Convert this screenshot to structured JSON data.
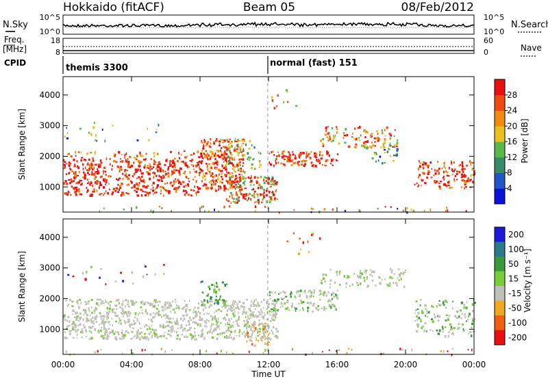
{
  "header": {
    "station": "Hokkaido (fitACF)",
    "beam": "Beam 05",
    "date": "08/Feb/2012"
  },
  "sky_panel": {
    "left_label": "N.Sky",
    "left_ticks": [
      "10^5",
      "10^0"
    ],
    "right_ticks": [
      "10^5",
      "10^0"
    ],
    "right_label": "N.Search",
    "series": [
      {
        "name": "N.Sky",
        "style": "solid",
        "level": 0.45
      },
      {
        "name": "N.Search",
        "style": "dotted",
        "level": 0.35
      }
    ]
  },
  "freq_panel": {
    "left_label_1": "Freq.",
    "left_label_2": "[MHz]",
    "left_ticks": [
      "18",
      "8"
    ],
    "right_ticks": [
      "60",
      "0"
    ],
    "right_label": "Nave"
  },
  "cpid_panel": {
    "label": "CPID",
    "programs": [
      {
        "name": "themis 3300",
        "start": "00:00"
      },
      {
        "name": "normal (fast) 151",
        "start": "12:00"
      }
    ]
  },
  "chart_data": [
    {
      "type": "heatmap",
      "name": "power",
      "ylabel": "Slant Range [km]",
      "yticks": [
        1000,
        2000,
        3000,
        4000
      ],
      "ylim": [
        180,
        4600
      ],
      "xlim": [
        "00:00",
        "24:00"
      ],
      "colorbar": {
        "label": "Power [dB]",
        "ticks": [
          4,
          8,
          12,
          16,
          20,
          24,
          28
        ],
        "colors": [
          "#0a14d8",
          "#2256c8",
          "#3a8a6a",
          "#5ab84a",
          "#e8c020",
          "#f08a10",
          "#f04a10",
          "#e81010"
        ]
      }
    },
    {
      "type": "heatmap",
      "name": "velocity",
      "ylabel": "Slant Range [km]",
      "yticks": [
        1000,
        2000,
        3000,
        4000
      ],
      "ylim": [
        180,
        4600
      ],
      "xlim": [
        "00:00",
        "24:00"
      ],
      "colorbar": {
        "label": "Velocity [m s⁻¹]",
        "ticks": [
          200,
          100,
          50,
          15,
          -15,
          -50,
          -100,
          -200
        ],
        "colors": [
          "#1a1ad8",
          "#2a7a8a",
          "#3a9a3a",
          "#7acc3a",
          "#c0c0b8",
          "#f0a820",
          "#f06010",
          "#e81010"
        ]
      }
    }
  ],
  "x_axis": {
    "ticks": [
      "00:00",
      "04:00",
      "08:00",
      "12:00",
      "16:00",
      "20:00",
      "00:00"
    ],
    "label": "Time UT"
  }
}
